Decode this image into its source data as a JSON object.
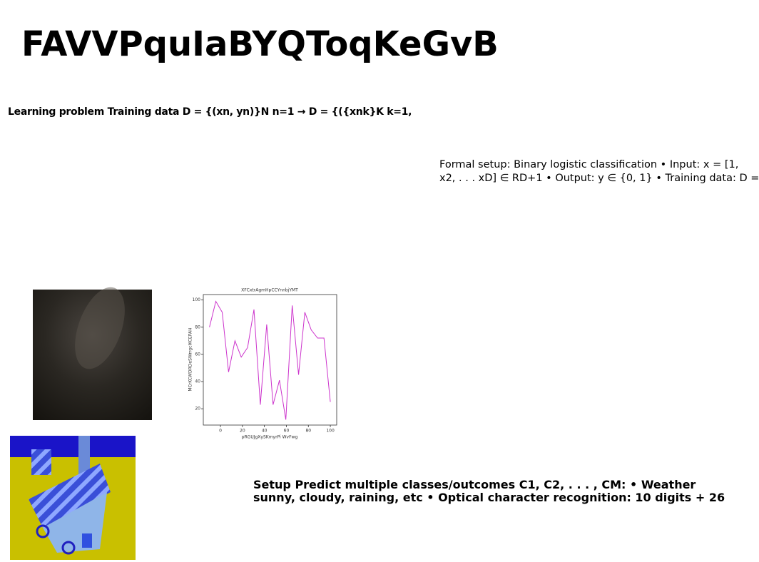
{
  "header": {
    "title": "FAVVPquIaBYQToqKeGvB"
  },
  "heading": "Learning problem Training data D = {(xn, yn)}N n=1 → D = {({xnk}K k=1,",
  "side_text": {
    "lines": [
      "Formal setup: Binary logistic classification • Input: x = [1,",
      "x2, . . . xD] ∈ RD+1 • Output: y ∈ {0, 1} • Training data: D ="
    ]
  },
  "bottom_text": {
    "lines": [
      "Setup Predict multiple classes/outcomes C1, C2, . . . , CM: • Weather",
      "sunny, cloudy, raining, etc • Optical character recognition: 10 digits + 26"
    ]
  },
  "chart_data": {
    "type": "line",
    "title": "XFCxtrAgmHpCCYnnbjYMT",
    "x_label": "pRGUJgXySKmyrPi WvFwg",
    "y_label": "MCrKCWDRDeSWrrgcIKCEPAH",
    "x": [
      -10,
      -4.2,
      1.6,
      7.4,
      13.2,
      18.9,
      24.7,
      30.5,
      36.3,
      42.1,
      47.9,
      53.7,
      59.5,
      65.3,
      71.1,
      76.8,
      82.6,
      88.4,
      94.2,
      100
    ],
    "series": [
      {
        "name": "series",
        "color": "#cc33cc",
        "values": [
          80,
          99,
          91,
          47,
          70,
          58,
          65,
          93,
          23,
          82,
          23,
          41,
          12,
          96,
          45,
          91,
          78,
          72,
          72,
          25
        ]
      }
    ],
    "xlim": [
      -15.6,
      105.8
    ],
    "ylim": [
      8,
      104
    ],
    "xticks": [
      0,
      20,
      40,
      60,
      80,
      100
    ],
    "yticks": [
      20,
      40,
      60,
      80,
      100
    ]
  }
}
